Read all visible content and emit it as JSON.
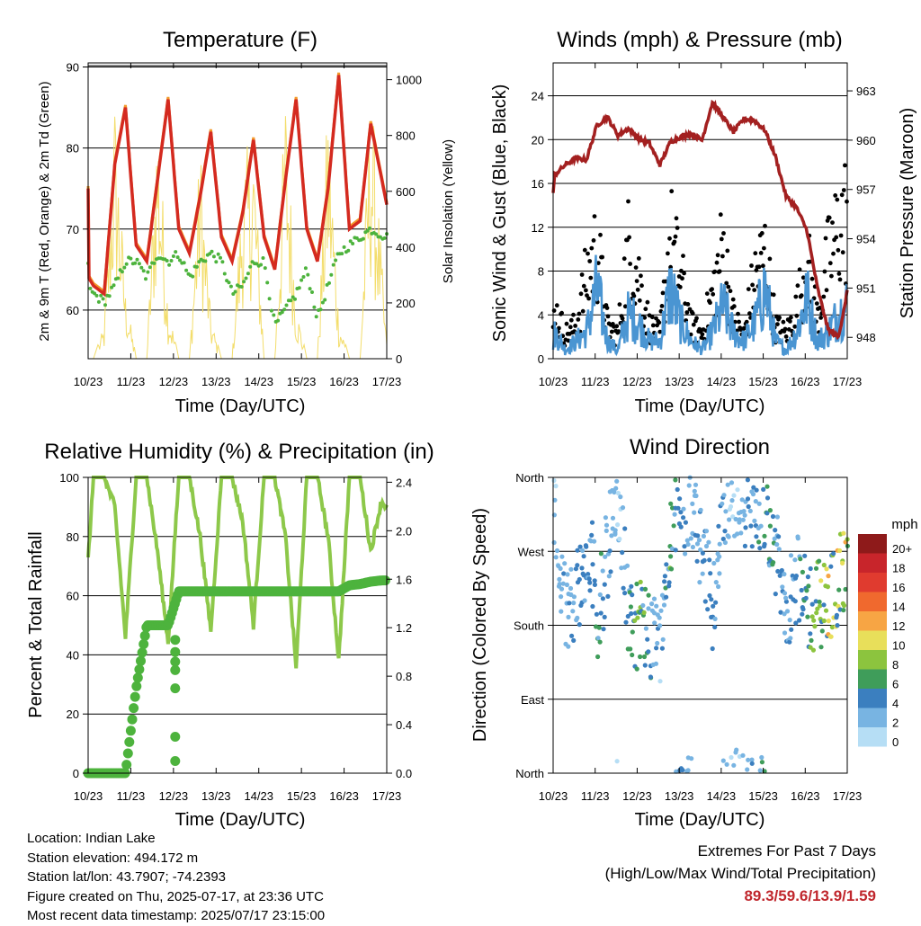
{
  "colors": {
    "temp2m": "#d42a20",
    "temp9m": "#f39a2b",
    "dewpoint": "#4db33d",
    "solar": "#f3dd6b",
    "wind": "#4a95d2",
    "gust": "#000000",
    "pressure": "#a32020",
    "rh": "#8dc84a",
    "precip": "#4db33d"
  },
  "xticks": [
    "10/23",
    "11/23",
    "12/23",
    "13/23",
    "14/23",
    "15/23",
    "16/23",
    "17/23"
  ],
  "panels": {
    "temperature": {
      "title": "Temperature (F)",
      "xlabel": "Time (Day/UTC)",
      "ylabel_left": "2m & 9m T (Red, Orange) & 2m Td (Green)",
      "ylabel_right": "Solar Insolation (Yellow)",
      "left_ticks": [
        "60",
        "70",
        "80",
        "90"
      ],
      "right_ticks": [
        "0",
        "200",
        "400",
        "600",
        "800",
        "1000"
      ]
    },
    "winds": {
      "title": "Winds (mph) & Pressure (mb)",
      "xlabel": "Time (Day/UTC)",
      "ylabel_left": "Sonic Wind & Gust (Blue, Black)",
      "ylabel_right": "Station Pressure (Maroon)",
      "left_ticks": [
        "0",
        "4",
        "8",
        "12",
        "16",
        "20",
        "24"
      ],
      "right_ticks": [
        "948",
        "951",
        "954",
        "957",
        "960",
        "963"
      ]
    },
    "humidity": {
      "title": "Relative Humidity (%) & Precipitation (in)",
      "xlabel": "Time (Day/UTC)",
      "ylabel_left": "Percent & Total Rainfall",
      "left_ticks": [
        "0",
        "20",
        "40",
        "60",
        "80",
        "100"
      ],
      "right_ticks": [
        "0.0",
        "0.4",
        "0.8",
        "1.2",
        "1.6",
        "2.0",
        "2.4"
      ]
    },
    "direction": {
      "title": "Wind Direction",
      "xlabel": "Time (Day/UTC)",
      "ylabel_left": "Direction (Colored By Speed)",
      "left_ticks": [
        "North",
        "East",
        "South",
        "West",
        "North"
      ],
      "legend_title": "mph",
      "legend_labels": [
        "20+",
        "18",
        "16",
        "14",
        "12",
        "10",
        "8",
        "6",
        "4",
        "2",
        "0"
      ],
      "legend_colors": [
        "#8e1a1a",
        "#c8252b",
        "#e03b2f",
        "#f0692e",
        "#f7a544",
        "#e8df5a",
        "#8cc43e",
        "#3f9d5a",
        "#3b7fbf",
        "#78b4e2",
        "#b6def5"
      ]
    }
  },
  "chart_data": [
    {
      "type": "line",
      "title": "Temperature (F)",
      "xlabel": "Time (Day/UTC)",
      "ylabel": "2m & 9m T (Red, Orange) & 2m Td (Green)",
      "y2label": "Solar Insolation (Yellow)",
      "ylim": [
        54,
        90.5
      ],
      "y2lim": [
        0,
        1060
      ],
      "x": [
        "10/23",
        "10/15",
        "11/02",
        "11/08",
        "11/14",
        "11/20",
        "12/02",
        "12/08",
        "12/14",
        "12/20",
        "13/02",
        "13/08",
        "13/14",
        "13/20",
        "14/02",
        "14/08",
        "14/14",
        "14/20",
        "15/02",
        "15/08",
        "15/14",
        "15/20",
        "16/02",
        "16/08",
        "16/14",
        "16/20",
        "17/02",
        "17/08",
        "17/14",
        "17/23"
      ],
      "series": [
        {
          "name": "2m T",
          "values": [
            75,
            67,
            63,
            62,
            78,
            85,
            68,
            66,
            76,
            86,
            70,
            67,
            74,
            82,
            69,
            66,
            72,
            81,
            69,
            65,
            76,
            86,
            70,
            66,
            75,
            89,
            70,
            71,
            83,
            73
          ]
        },
        {
          "name": "2m Td",
          "values": [
            66,
            64,
            62,
            61,
            63,
            66,
            66,
            64,
            67,
            66,
            67,
            64,
            66,
            67,
            66,
            62,
            63,
            66,
            66,
            58,
            60,
            62,
            65,
            59,
            63,
            67,
            68,
            69,
            70,
            69
          ]
        },
        {
          "name": "Solar Insolation",
          "values": [
            0,
            0,
            0,
            120,
            960,
            250,
            0,
            0,
            980,
            200,
            0,
            0,
            800,
            150,
            0,
            0,
            700,
            850,
            0,
            0,
            1000,
            200,
            0,
            0,
            980,
            150,
            0,
            0,
            1040,
            50
          ]
        }
      ]
    },
    {
      "type": "line",
      "title": "Winds (mph) & Pressure (mb)",
      "xlabel": "Time (Day/UTC)",
      "ylabel": "Sonic Wind & Gust (Blue, Black)",
      "y2label": "Station Pressure (Maroon)",
      "ylim": [
        0,
        27
      ],
      "y2lim": [
        946.7,
        964.7
      ],
      "x": [
        "10/23",
        "11/00",
        "11/06",
        "11/12",
        "11/18",
        "12/00",
        "12/06",
        "12/12",
        "12/18",
        "13/00",
        "13/06",
        "13/12",
        "13/18",
        "14/00",
        "14/06",
        "14/12",
        "14/18",
        "15/00",
        "15/06",
        "15/12",
        "15/18",
        "16/00",
        "16/06",
        "16/12",
        "16/18",
        "17/00",
        "17/06",
        "17/12",
        "17/18",
        "17/23"
      ],
      "series": [
        {
          "name": "Sonic Wind",
          "values": [
            2,
            3,
            1,
            2,
            3,
            8,
            2,
            1,
            5,
            4,
            2,
            2,
            8,
            4,
            2,
            1,
            3,
            6,
            3,
            2,
            4,
            8,
            2,
            1,
            3,
            7,
            2,
            3,
            5,
            6
          ]
        },
        {
          "name": "Gust",
          "values": [
            4,
            6,
            3,
            4,
            10,
            14,
            4,
            3,
            14,
            10,
            4,
            3,
            15,
            10,
            4,
            3,
            8,
            14,
            5,
            3,
            10,
            13,
            4,
            3,
            6,
            12,
            5,
            12,
            16,
            18
          ]
        },
        {
          "name": "Station Pressure",
          "values": [
            956.8,
            957.9,
            958.5,
            958.9,
            958.8,
            960.9,
            961.4,
            960.3,
            960.7,
            960.1,
            959.8,
            958.5,
            959.9,
            960.2,
            960.4,
            960.0,
            962.3,
            961.4,
            960.5,
            961.3,
            961.2,
            960.6,
            959.0,
            956.6,
            955.9,
            954.5,
            951.0,
            948.5,
            948.0,
            950.8
          ]
        }
      ]
    },
    {
      "type": "line",
      "title": "Relative Humidity (%) & Precipitation (in)",
      "xlabel": "Time (Day/UTC)",
      "ylabel": "Percent & Total Rainfall",
      "ylim": [
        0,
        100
      ],
      "y2lim": [
        0,
        2.44
      ],
      "x": [
        "10/23",
        "11/02",
        "11/08",
        "11/14",
        "11/20",
        "12/02",
        "12/08",
        "12/14",
        "12/20",
        "13/02",
        "13/08",
        "13/14",
        "13/20",
        "14/02",
        "14/08",
        "14/14",
        "14/20",
        "15/02",
        "15/08",
        "15/14",
        "15/20",
        "16/02",
        "16/08",
        "16/14",
        "16/20",
        "17/02",
        "17/08",
        "17/14",
        "17/20",
        "17/23"
      ],
      "series": [
        {
          "name": "Relative Humidity",
          "values": [
            72,
            100,
            100,
            90,
            46,
            100,
            100,
            75,
            44,
            100,
            100,
            80,
            48,
            100,
            100,
            85,
            50,
            100,
            100,
            80,
            36,
            100,
            100,
            80,
            38,
            100,
            100,
            75,
            92,
            90
          ]
        },
        {
          "name": "Total Rainfall",
          "values": [
            0,
            0,
            0,
            0,
            0,
            0.7,
            1.22,
            1.22,
            1.22,
            1.5,
            1.5,
            1.5,
            1.5,
            1.5,
            1.5,
            1.5,
            1.5,
            1.5,
            1.5,
            1.5,
            1.5,
            1.5,
            1.5,
            1.5,
            1.5,
            1.55,
            1.56,
            1.58,
            1.59,
            1.59
          ]
        }
      ]
    },
    {
      "type": "scatter",
      "title": "Wind Direction",
      "xlabel": "Time (Day/UTC)",
      "ylabel": "Direction (Colored By Speed)",
      "y_categories": [
        "North",
        "East",
        "South",
        "West",
        "North"
      ],
      "colorbar_label": "mph",
      "colorbar_range": [
        0,
        20
      ],
      "x": [
        "10/23",
        "11/06",
        "11/12",
        "11/23",
        "12/00",
        "12/12",
        "12/18",
        "13/00",
        "13/12",
        "13/18",
        "14/06",
        "14/18",
        "15/00",
        "15/06",
        "15/18",
        "16/00",
        "16/12",
        "16/18",
        "17/00",
        "17/12",
        "17/23"
      ],
      "series": [
        {
          "name": "Direction",
          "values": [
            320,
            200,
            220,
            260,
            180,
            350,
            190,
            180,
            150,
            300,
            330,
            200,
            330,
            340,
            320,
            330,
            200,
            240,
            200,
            210,
            250
          ]
        },
        {
          "name": "Speed",
          "values": [
            1,
            3,
            4,
            4,
            6,
            1,
            5,
            8,
            2,
            6,
            2,
            4,
            3,
            1,
            4,
            5,
            3,
            4,
            6,
            9,
            9
          ]
        }
      ]
    }
  ],
  "info": {
    "location": "Location: Indian Lake",
    "elevation": "Station elevation: 494.172 m",
    "latlon": "Station lat/lon: 43.7907; -74.2393",
    "created": "Figure created on Thu, 2025-07-17, at 23:36 UTC",
    "recent": "Most recent data timestamp: 2025/07/17 23:15:00"
  },
  "extremes": {
    "title": "Extremes For Past 7 Days",
    "subtitle": "(High/Low/Max Wind/Total Precipitation)",
    "values": "89.3/59.6/13.9/1.59"
  }
}
